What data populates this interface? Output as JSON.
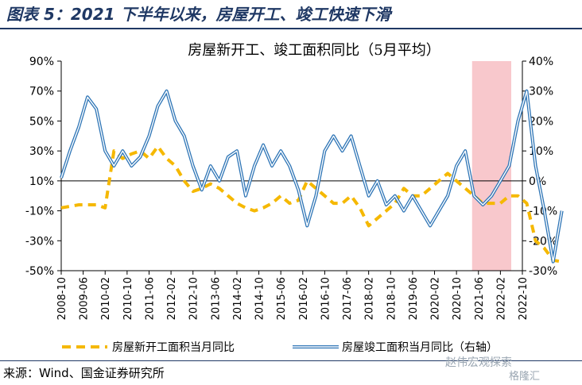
{
  "figure_title": "图表 5：2021 下半年以来，房屋开工、竣工快速下滑",
  "source_note": "来源：Wind、国金证券研究所",
  "watermark": "赵伟宏观探索",
  "watermark2": "格隆汇",
  "colors": {
    "start_series": "#f5b800",
    "complete_series": "#2e75b6",
    "shade": "#f8c8cc",
    "title": "#1f3864"
  },
  "chart_data": {
    "type": "line",
    "title": "房屋新开工、竣工面积同比（5月平均）",
    "y_left_ticks": [
      "90%",
      "70%",
      "50%",
      "30%",
      "10%",
      "-10%",
      "-30%",
      "-50%"
    ],
    "y_right_ticks": [
      "40%",
      "30%",
      "20%",
      "10%",
      "0%",
      "-10%",
      "-20%",
      "-30%"
    ],
    "y_left_range": [
      -50,
      90
    ],
    "y_right_range": [
      -30,
      40
    ],
    "x_ticks": [
      "2008-10",
      "2009-06",
      "2010-02",
      "2010-10",
      "2011-06",
      "2012-02",
      "2012-10",
      "2013-06",
      "2014-02",
      "2014-10",
      "2015-06",
      "2016-02",
      "2016-10",
      "2017-06",
      "2018-02",
      "2018-10",
      "2019-06",
      "2020-02",
      "2020-10",
      "2021-06",
      "2022-02",
      "2022-10"
    ],
    "shaded_range": [
      "2021-06",
      "2022-10"
    ],
    "legend": [
      "房屋新开工面积当月同比",
      "房屋竣工面积当月同比（右轴）"
    ],
    "series": [
      {
        "name": "房屋新开工面积当月同比",
        "axis": "left",
        "style": "dashed",
        "points": [
          [
            0,
            -8
          ],
          [
            2,
            -6
          ],
          [
            4,
            -6
          ],
          [
            5,
            -8
          ],
          [
            6,
            30
          ],
          [
            7,
            25
          ],
          [
            8,
            28
          ],
          [
            9,
            30
          ],
          [
            10,
            25
          ],
          [
            11,
            33
          ],
          [
            12,
            25
          ],
          [
            13,
            20
          ],
          [
            14,
            10
          ],
          [
            15,
            3
          ],
          [
            16,
            5
          ],
          [
            17,
            8
          ],
          [
            18,
            5
          ],
          [
            19,
            0
          ],
          [
            20,
            -5
          ],
          [
            21,
            -8
          ],
          [
            22,
            -10
          ],
          [
            23,
            -8
          ],
          [
            24,
            -5
          ],
          [
            25,
            0
          ],
          [
            26,
            -5
          ],
          [
            27,
            -3
          ],
          [
            28,
            10
          ],
          [
            29,
            5
          ],
          [
            30,
            0
          ],
          [
            31,
            -5
          ],
          [
            32,
            -5
          ],
          [
            33,
            0
          ],
          [
            34,
            -8
          ],
          [
            35,
            -20
          ],
          [
            36,
            -15
          ],
          [
            37,
            -10
          ],
          [
            38,
            -5
          ],
          [
            39,
            5
          ],
          [
            40,
            0
          ],
          [
            41,
            0
          ],
          [
            42,
            5
          ],
          [
            43,
            10
          ],
          [
            44,
            15
          ],
          [
            45,
            10
          ],
          [
            46,
            5
          ],
          [
            47,
            0
          ],
          [
            48,
            -5
          ],
          [
            49,
            -5
          ],
          [
            50,
            -5
          ],
          [
            51,
            0
          ],
          [
            52,
            0
          ],
          [
            53,
            -5
          ],
          [
            54,
            -30
          ],
          [
            55,
            -35
          ],
          [
            56,
            -43
          ],
          [
            57,
            -44
          ]
        ]
      },
      {
        "name": "房屋竣工面积当月同比（右轴）",
        "axis": "right",
        "style": "double",
        "points": [
          [
            0,
            1
          ],
          [
            1,
            10
          ],
          [
            2,
            18
          ],
          [
            3,
            28
          ],
          [
            4,
            24
          ],
          [
            5,
            10
          ],
          [
            6,
            5
          ],
          [
            7,
            10
          ],
          [
            8,
            5
          ],
          [
            9,
            8
          ],
          [
            10,
            15
          ],
          [
            11,
            25
          ],
          [
            12,
            30
          ],
          [
            13,
            20
          ],
          [
            14,
            15
          ],
          [
            15,
            5
          ],
          [
            16,
            -3
          ],
          [
            17,
            5
          ],
          [
            18,
            0
          ],
          [
            19,
            8
          ],
          [
            20,
            10
          ],
          [
            21,
            -5
          ],
          [
            22,
            5
          ],
          [
            23,
            12
          ],
          [
            24,
            5
          ],
          [
            25,
            10
          ],
          [
            26,
            5
          ],
          [
            27,
            -3
          ],
          [
            28,
            -15
          ],
          [
            29,
            -5
          ],
          [
            30,
            10
          ],
          [
            31,
            15
          ],
          [
            32,
            10
          ],
          [
            33,
            15
          ],
          [
            34,
            5
          ],
          [
            35,
            -5
          ],
          [
            36,
            0
          ],
          [
            37,
            -8
          ],
          [
            38,
            -5
          ],
          [
            39,
            -10
          ],
          [
            40,
            -5
          ],
          [
            41,
            -10
          ],
          [
            42,
            -15
          ],
          [
            43,
            -10
          ],
          [
            44,
            -5
          ],
          [
            45,
            5
          ],
          [
            46,
            10
          ],
          [
            47,
            -5
          ],
          [
            48,
            -8
          ],
          [
            49,
            -5
          ],
          [
            50,
            0
          ],
          [
            51,
            5
          ],
          [
            52,
            20
          ],
          [
            53,
            30
          ],
          [
            54,
            5
          ],
          [
            55,
            -10
          ],
          [
            56,
            -27
          ],
          [
            57,
            -10
          ]
        ]
      }
    ]
  }
}
